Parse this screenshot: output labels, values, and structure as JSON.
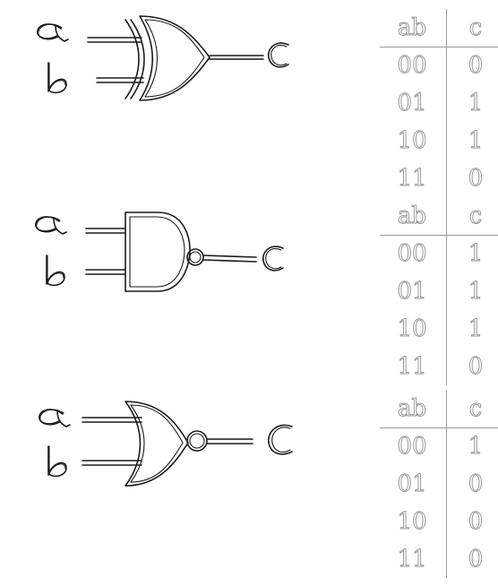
{
  "gates": [
    {
      "id": "xor",
      "inputs": [
        "a",
        "b"
      ],
      "output": "c",
      "truth_table": {
        "headers": [
          "ab",
          "c"
        ],
        "rows": [
          [
            "00",
            "0"
          ],
          [
            "01",
            "1"
          ],
          [
            "10",
            "1"
          ],
          [
            "11",
            "0"
          ]
        ]
      }
    },
    {
      "id": "nand",
      "inputs": [
        "a",
        "b"
      ],
      "output": "c",
      "truth_table": {
        "headers": [
          "ab",
          "c"
        ],
        "rows": [
          [
            "00",
            "1"
          ],
          [
            "01",
            "1"
          ],
          [
            "10",
            "1"
          ],
          [
            "11",
            "0"
          ]
        ]
      }
    },
    {
      "id": "nor",
      "inputs": [
        "a",
        "b"
      ],
      "output": "c",
      "truth_table": {
        "headers": [
          "ab",
          "c"
        ],
        "rows": [
          [
            "00",
            "1"
          ],
          [
            "01",
            "0"
          ],
          [
            "10",
            "0"
          ],
          [
            "11",
            "0"
          ]
        ]
      }
    }
  ]
}
